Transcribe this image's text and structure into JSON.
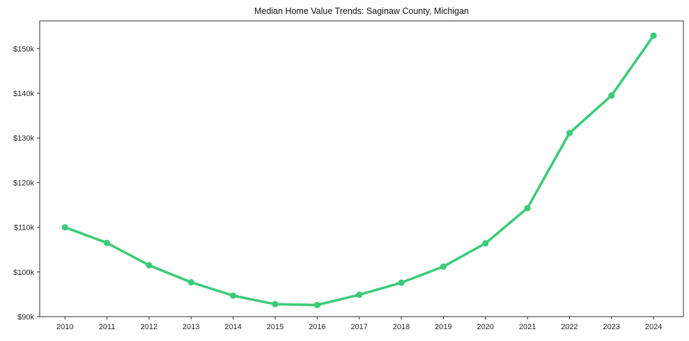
{
  "figure": {
    "background": "#ffffff"
  },
  "chart_data": {
    "type": "line",
    "title": "Median Home Value Trends: Saginaw County, Michigan",
    "xlabel": "",
    "ylabel": "",
    "x": [
      2010,
      2011,
      2012,
      2013,
      2014,
      2015,
      2016,
      2017,
      2018,
      2019,
      2020,
      2021,
      2022,
      2023,
      2024
    ],
    "x_tick_labels": [
      "2010",
      "2011",
      "2012",
      "2013",
      "2014",
      "2015",
      "2016",
      "2017",
      "2018",
      "2019",
      "2020",
      "2021",
      "2022",
      "2023",
      "2024"
    ],
    "series": [
      {
        "name": "Median Home Value",
        "values": [
          110000,
          106500,
          101500,
          97700,
          94700,
          92800,
          92600,
          94900,
          97600,
          101200,
          106400,
          114300,
          131100,
          139500,
          152900
        ]
      }
    ],
    "y_ticks": [
      {
        "value": 90000,
        "label": "$90k"
      },
      {
        "value": 100000,
        "label": "$100k"
      },
      {
        "value": 110000,
        "label": "$110k"
      },
      {
        "value": 120000,
        "label": "$120k"
      },
      {
        "value": 130000,
        "label": "$130k"
      },
      {
        "value": 140000,
        "label": "$140k"
      },
      {
        "value": 150000,
        "label": "$150k"
      }
    ],
    "xlim": [
      2009.4,
      2024.71
    ],
    "ylim": [
      90000,
      156200
    ],
    "grid": false,
    "legend": "none",
    "line_color": "#3ccb79",
    "marker": "circle",
    "marker_color": "#3ccb79",
    "spine_color": "#2b2b2b",
    "tick_color": "#2b2b2b"
  }
}
